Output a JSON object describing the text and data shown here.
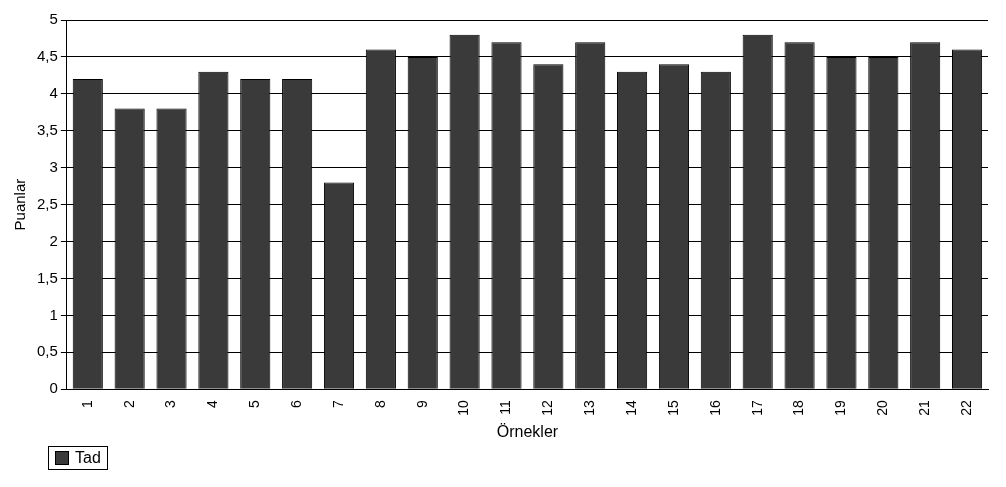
{
  "chart_data": {
    "type": "bar",
    "xlabel": "Örnekler",
    "ylabel": "Puanlar",
    "categories": [
      "1",
      "2",
      "3",
      "4",
      "5",
      "6",
      "7",
      "8",
      "9",
      "10",
      "11",
      "12",
      "13",
      "14",
      "15",
      "16",
      "17",
      "18",
      "19",
      "20",
      "21",
      "22"
    ],
    "series": [
      {
        "name": "Tad",
        "color": "#3a3a3a",
        "values": [
          4.2,
          3.8,
          3.8,
          4.3,
          4.2,
          4.2,
          2.8,
          4.6,
          4.5,
          4.8,
          4.7,
          4.4,
          4.7,
          4.3,
          4.4,
          4.3,
          4.8,
          4.7,
          4.5,
          4.5,
          4.7,
          4.6
        ]
      }
    ],
    "ylim": [
      0,
      5
    ],
    "yticks": [
      {
        "value": 0,
        "label": "0"
      },
      {
        "value": 0.5,
        "label": "0,5"
      },
      {
        "value": 1,
        "label": "1"
      },
      {
        "value": 1.5,
        "label": "1,5"
      },
      {
        "value": 2,
        "label": "2"
      },
      {
        "value": 2.5,
        "label": "2,5"
      },
      {
        "value": 3,
        "label": "3"
      },
      {
        "value": 3.5,
        "label": "3,5"
      },
      {
        "value": 4,
        "label": "4"
      },
      {
        "value": 4.5,
        "label": "4,5"
      },
      {
        "value": 5,
        "label": "5"
      }
    ],
    "grid": "y",
    "legend": "bottom left"
  }
}
